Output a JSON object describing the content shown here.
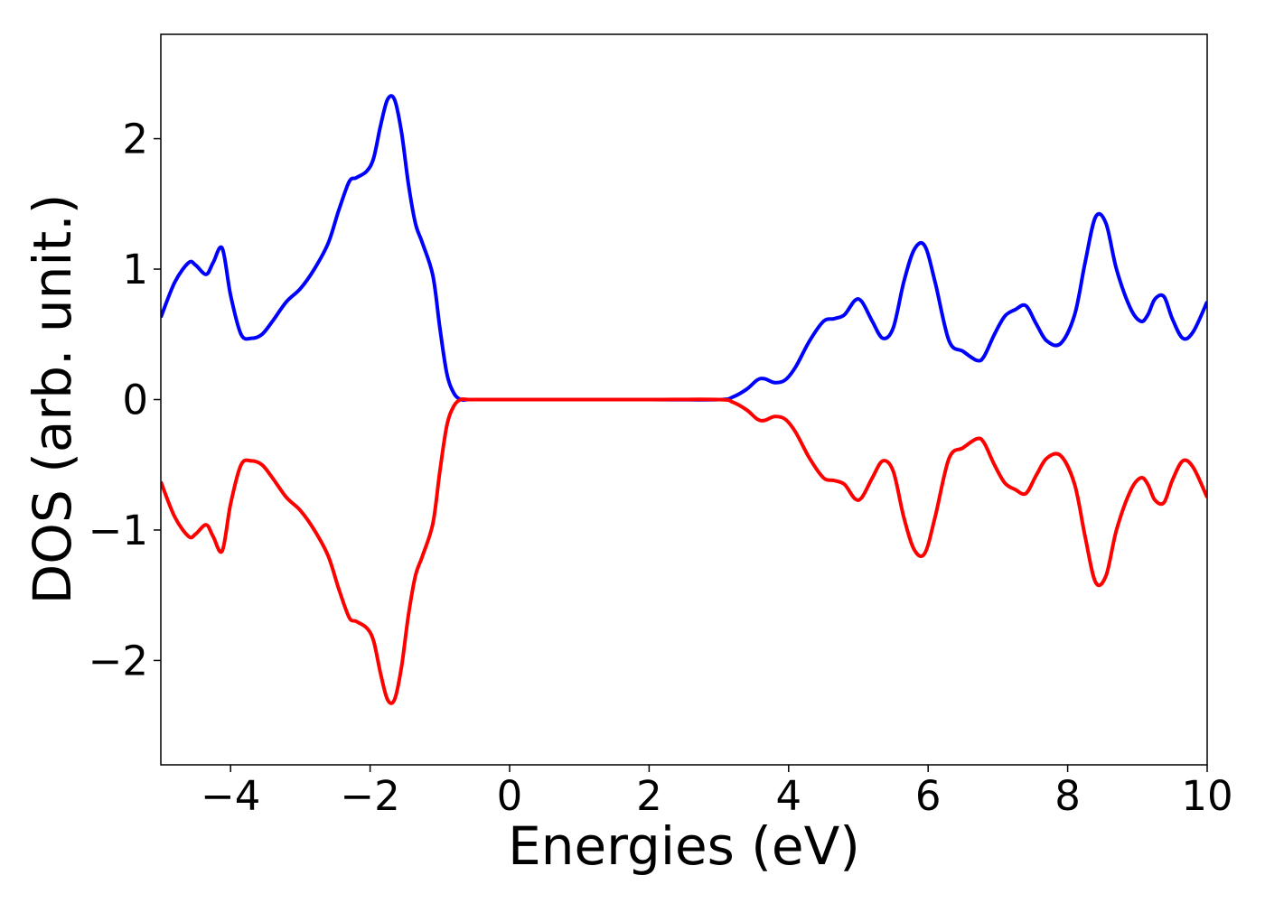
{
  "chart_data": {
    "type": "line",
    "title": "",
    "xlabel": "Energies (eV)",
    "ylabel": "DOS (arb. unit.)",
    "xlim": [
      -5,
      10
    ],
    "ylim": [
      -2.8,
      2.8
    ],
    "grid": false,
    "legend": "none",
    "xticks": [
      -4,
      -2,
      0,
      2,
      4,
      6,
      8,
      10
    ],
    "xtick_labels": [
      "−4",
      "−2",
      "0",
      "2",
      "4",
      "6",
      "8",
      "10"
    ],
    "yticks": [
      -2,
      -1,
      0,
      1,
      2
    ],
    "ytick_labels": [
      "−2",
      "−1",
      "0",
      "1",
      "2"
    ],
    "series": [
      {
        "color": "#0000ff",
        "x": [
          -5.0,
          -4.8,
          -4.6,
          -4.5,
          -4.35,
          -4.25,
          -4.12,
          -4.0,
          -3.85,
          -3.7,
          -3.55,
          -3.4,
          -3.2,
          -3.0,
          -2.8,
          -2.6,
          -2.45,
          -2.3,
          -2.2,
          -2.05,
          -1.95,
          -1.85,
          -1.75,
          -1.65,
          -1.55,
          -1.45,
          -1.35,
          -1.25,
          -1.1,
          -1.0,
          -0.9,
          -0.8,
          -0.7,
          -0.6,
          -0.5,
          -0.3,
          0.0,
          1.0,
          2.0,
          3.0,
          3.2,
          3.4,
          3.55,
          3.65,
          3.8,
          3.95,
          4.1,
          4.3,
          4.5,
          4.65,
          4.8,
          4.95,
          5.05,
          5.2,
          5.35,
          5.5,
          5.65,
          5.8,
          5.95,
          6.1,
          6.3,
          6.5,
          6.7,
          6.8,
          6.95,
          7.1,
          7.25,
          7.4,
          7.55,
          7.7,
          7.9,
          8.1,
          8.25,
          8.4,
          8.55,
          8.7,
          8.9,
          9.05,
          9.15,
          9.25,
          9.38,
          9.5,
          9.65,
          9.8,
          10.0
        ],
        "y": [
          0.63,
          0.9,
          1.05,
          1.03,
          0.96,
          1.05,
          1.16,
          0.8,
          0.5,
          0.47,
          0.5,
          0.6,
          0.75,
          0.85,
          1.0,
          1.2,
          1.45,
          1.67,
          1.7,
          1.75,
          1.85,
          2.1,
          2.3,
          2.3,
          2.05,
          1.65,
          1.35,
          1.2,
          0.95,
          0.55,
          0.2,
          0.05,
          0.0,
          0.0,
          0.0,
          0.0,
          0.0,
          0.0,
          0.0,
          0.0,
          0.02,
          0.08,
          0.15,
          0.16,
          0.13,
          0.15,
          0.25,
          0.45,
          0.6,
          0.62,
          0.65,
          0.76,
          0.75,
          0.6,
          0.47,
          0.55,
          0.9,
          1.15,
          1.18,
          0.9,
          0.45,
          0.37,
          0.3,
          0.33,
          0.5,
          0.64,
          0.69,
          0.72,
          0.58,
          0.45,
          0.43,
          0.65,
          1.05,
          1.4,
          1.35,
          1.0,
          0.7,
          0.6,
          0.65,
          0.77,
          0.79,
          0.62,
          0.47,
          0.52,
          0.75
        ]
      },
      {
        "color": "#ff0000",
        "x": [
          -5.0,
          -4.8,
          -4.6,
          -4.5,
          -4.35,
          -4.25,
          -4.12,
          -4.0,
          -3.85,
          -3.7,
          -3.55,
          -3.4,
          -3.2,
          -3.0,
          -2.8,
          -2.6,
          -2.45,
          -2.3,
          -2.2,
          -2.05,
          -1.95,
          -1.85,
          -1.75,
          -1.65,
          -1.55,
          -1.45,
          -1.35,
          -1.25,
          -1.1,
          -1.0,
          -0.9,
          -0.8,
          -0.7,
          -0.6,
          -0.5,
          -0.3,
          0.0,
          1.0,
          2.0,
          3.0,
          3.2,
          3.4,
          3.55,
          3.65,
          3.8,
          3.95,
          4.1,
          4.3,
          4.5,
          4.65,
          4.8,
          4.95,
          5.05,
          5.2,
          5.35,
          5.5,
          5.65,
          5.8,
          5.95,
          6.1,
          6.3,
          6.5,
          6.7,
          6.8,
          6.95,
          7.1,
          7.25,
          7.4,
          7.55,
          7.7,
          7.9,
          8.1,
          8.25,
          8.4,
          8.55,
          8.7,
          8.9,
          9.05,
          9.15,
          9.25,
          9.38,
          9.5,
          9.65,
          9.8,
          10.0
        ],
        "y": [
          -0.63,
          -0.9,
          -1.05,
          -1.03,
          -0.96,
          -1.05,
          -1.16,
          -0.8,
          -0.5,
          -0.47,
          -0.5,
          -0.6,
          -0.75,
          -0.85,
          -1.0,
          -1.2,
          -1.45,
          -1.67,
          -1.7,
          -1.75,
          -1.85,
          -2.1,
          -2.3,
          -2.3,
          -2.05,
          -1.65,
          -1.35,
          -1.2,
          -0.95,
          -0.55,
          -0.2,
          -0.05,
          0.0,
          0.0,
          0.0,
          0.0,
          0.0,
          0.0,
          0.0,
          0.0,
          -0.02,
          -0.08,
          -0.15,
          -0.16,
          -0.13,
          -0.15,
          -0.25,
          -0.45,
          -0.6,
          -0.62,
          -0.65,
          -0.76,
          -0.75,
          -0.6,
          -0.47,
          -0.55,
          -0.9,
          -1.15,
          -1.18,
          -0.9,
          -0.45,
          -0.37,
          -0.3,
          -0.33,
          -0.5,
          -0.64,
          -0.69,
          -0.72,
          -0.58,
          -0.45,
          -0.43,
          -0.65,
          -1.05,
          -1.4,
          -1.35,
          -1.0,
          -0.7,
          -0.6,
          -0.65,
          -0.77,
          -0.79,
          -0.62,
          -0.47,
          -0.52,
          -0.75
        ]
      }
    ]
  }
}
